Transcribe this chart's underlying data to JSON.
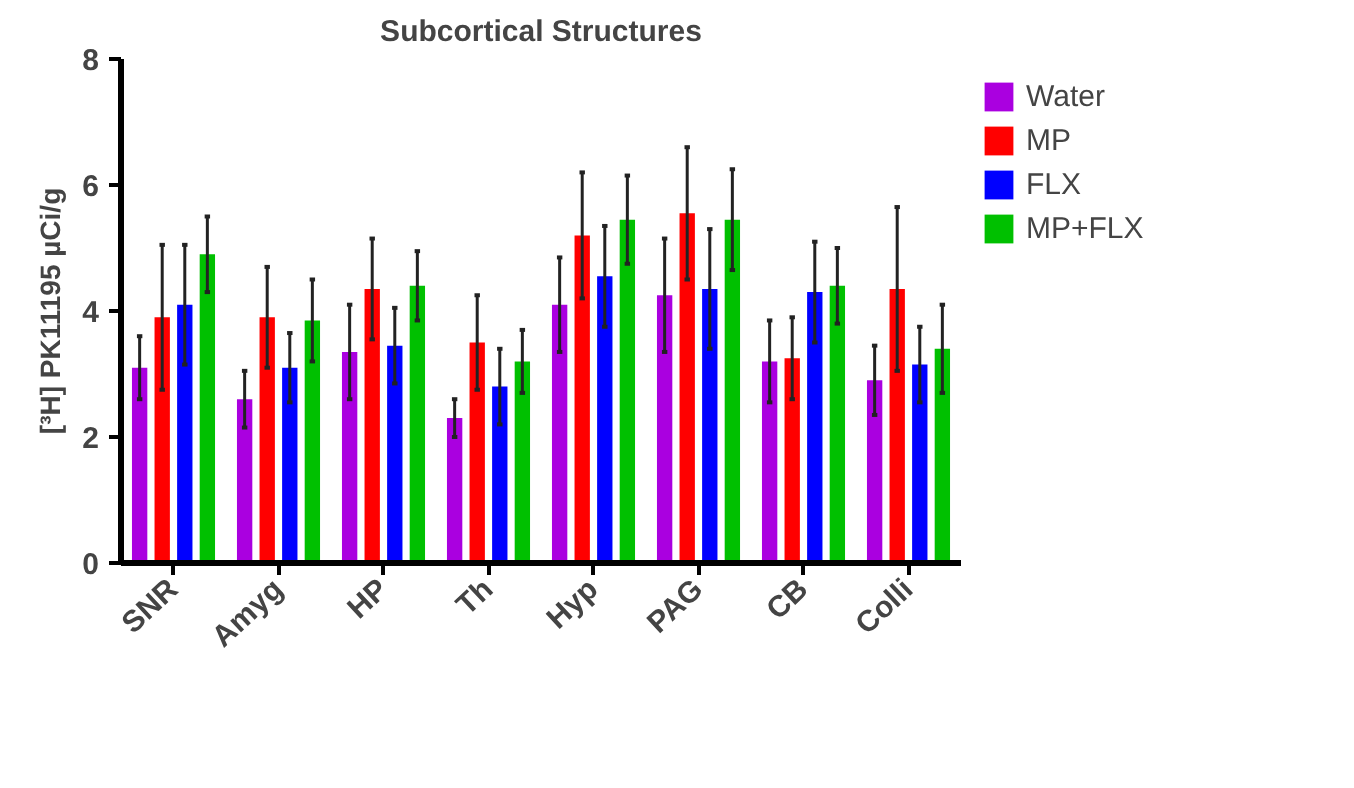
{
  "chart_data": {
    "type": "bar",
    "title": "Subcortical Structures",
    "ylabel": "[³H] PK11195 µCi/g",
    "categories": [
      "SNR",
      "Amyg",
      "HP",
      "Th",
      "Hyp",
      "PAG",
      "CB",
      "Colli"
    ],
    "series": [
      {
        "name": "Water",
        "color": "#aa00e0",
        "values": [
          3.1,
          2.6,
          3.35,
          2.3,
          4.1,
          4.25,
          3.2,
          2.9
        ],
        "errors": [
          0.5,
          0.45,
          0.75,
          0.3,
          0.75,
          0.9,
          0.65,
          0.55
        ]
      },
      {
        "name": "MP",
        "color": "#ff0000",
        "values": [
          3.9,
          3.9,
          4.35,
          3.5,
          5.2,
          5.55,
          3.25,
          4.35
        ],
        "errors": [
          1.15,
          0.8,
          0.8,
          0.75,
          1.0,
          1.05,
          0.65,
          1.3
        ]
      },
      {
        "name": "FLX",
        "color": "#0000ff",
        "values": [
          4.1,
          3.1,
          3.45,
          2.8,
          4.55,
          4.35,
          4.3,
          3.15
        ],
        "errors": [
          0.95,
          0.55,
          0.6,
          0.6,
          0.8,
          0.95,
          0.8,
          0.6
        ]
      },
      {
        "name": "MP+FLX",
        "color": "#00c000",
        "values": [
          4.9,
          3.85,
          4.4,
          3.2,
          5.45,
          5.45,
          4.4,
          3.4
        ],
        "errors": [
          0.6,
          0.65,
          0.55,
          0.5,
          0.7,
          0.8,
          0.6,
          0.7
        ]
      }
    ],
    "ylim": [
      0,
      8
    ],
    "yticks": [
      0,
      2,
      4,
      6,
      8
    ],
    "grid": false,
    "legend": "right"
  }
}
